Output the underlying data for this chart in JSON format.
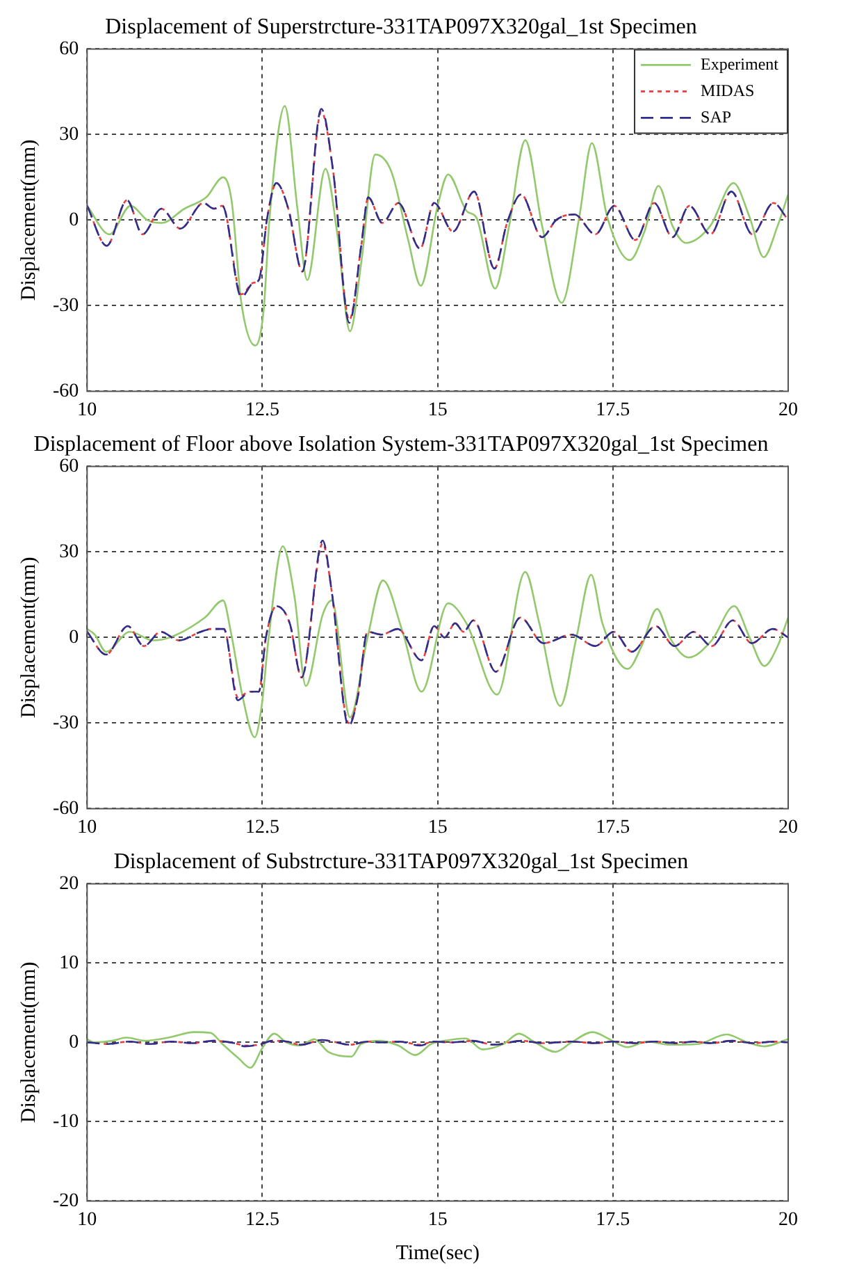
{
  "chart_data": [
    {
      "type": "line",
      "title": "Displacement of Superstrcture-331TAP097X320gal_1st Specimen",
      "ylabel": "Displacement(mm)",
      "xlim": [
        10,
        20
      ],
      "xticks": [
        10,
        12.5,
        15,
        17.5,
        20
      ],
      "ylim": [
        -60,
        60
      ],
      "yticks": [
        -60,
        -30,
        0,
        30,
        60
      ],
      "grid": true,
      "legend": "top right",
      "series": [
        {
          "name": "Experiment",
          "color": "#92c96c",
          "line_style": "solid",
          "x": [
            10,
            10.32,
            10.62,
            10.86,
            11.06,
            11.39,
            11.7,
            11.94,
            12.06,
            12.2,
            12.4,
            12.52,
            12.6,
            12.82,
            13.0,
            13.14,
            13.4,
            13.57,
            13.75,
            13.91,
            14.11,
            14.34,
            14.58,
            14.76,
            15.0,
            15.15,
            15.42,
            15.55,
            15.82,
            16.02,
            16.25,
            16.49,
            16.77,
            17.02,
            17.2,
            17.42,
            17.74,
            17.95,
            18.15,
            18.35,
            18.54,
            18.89,
            19.22,
            19.45,
            19.65,
            19.85,
            20
          ],
          "values": [
            5,
            -5,
            5,
            0,
            -1,
            4,
            8,
            15,
            7,
            -29,
            -44,
            -31,
            0,
            40,
            4,
            -21,
            18,
            -5,
            -39,
            -15,
            23,
            17,
            -7,
            -23,
            5,
            16,
            3,
            1,
            -24,
            -2,
            28,
            -2,
            -29,
            1,
            27,
            1,
            -14,
            -4,
            12,
            -2,
            -8,
            -2,
            13,
            1,
            -13,
            -2,
            9
          ]
        },
        {
          "name": "MIDAS",
          "color": "#ee3b3b",
          "line_style": "dotted",
          "x": [
            10,
            10.28,
            10.57,
            10.79,
            11.06,
            11.33,
            11.66,
            11.81,
            11.93,
            12.2,
            12.37,
            12.45,
            12.57,
            12.7,
            12.87,
            13.07,
            13.34,
            13.51,
            13.74,
            13.91,
            14.01,
            14.21,
            14.44,
            14.75,
            14.95,
            15.22,
            15.52,
            15.81,
            15.99,
            16.19,
            16.49,
            16.69,
            16.95,
            17.25,
            17.52,
            17.82,
            18.09,
            18.35,
            18.59,
            18.89,
            19.19,
            19.49,
            19.79,
            20
          ],
          "values": [
            5,
            -9,
            7,
            -5,
            4,
            -3,
            6,
            4,
            5,
            -26,
            -22,
            -21,
            1,
            13,
            4,
            -18,
            38,
            17,
            -35,
            -9,
            8,
            -1,
            6,
            -10,
            6,
            -4,
            10,
            -17,
            -1,
            9,
            -6,
            0,
            2,
            -5,
            5,
            -7,
            6,
            -6,
            5,
            -5,
            10,
            -5,
            6,
            0
          ]
        },
        {
          "name": "SAP",
          "color": "#2e2e8e",
          "line_style": "dashed",
          "x": [
            10,
            10.28,
            10.57,
            10.79,
            11.06,
            11.33,
            11.66,
            11.81,
            11.93,
            12.2,
            12.37,
            12.45,
            12.57,
            12.7,
            12.87,
            13.07,
            13.34,
            13.51,
            13.74,
            13.91,
            14.01,
            14.21,
            14.44,
            14.75,
            14.95,
            15.22,
            15.52,
            15.81,
            15.99,
            16.19,
            16.49,
            16.69,
            16.95,
            17.25,
            17.52,
            17.82,
            18.09,
            18.35,
            18.59,
            18.89,
            19.19,
            19.49,
            19.79,
            20
          ],
          "values": [
            5,
            -9,
            7,
            -5,
            4,
            -3,
            6,
            4,
            5,
            -27,
            -22,
            -21,
            1,
            13,
            4,
            -18,
            39,
            17,
            -36,
            -9,
            8,
            -1,
            6,
            -10,
            6,
            -4,
            10,
            -17,
            -1,
            9,
            -6,
            0,
            2,
            -5,
            5,
            -7,
            6,
            -6,
            5,
            -5,
            10,
            -5,
            6,
            0
          ]
        }
      ]
    },
    {
      "type": "line",
      "title": "Displacement of Floor above Isolation System-331TAP097X320gal_1st Specimen",
      "ylabel": "Displacement(mm)",
      "xlim": [
        10,
        20
      ],
      "xticks": [
        10,
        12.5,
        15,
        17.5,
        20
      ],
      "ylim": [
        -60,
        60
      ],
      "yticks": [
        -60,
        -30,
        0,
        30,
        60
      ],
      "grid": true,
      "series": [
        {
          "color": "#92c96c",
          "line_style": "solid",
          "x": [
            10,
            10.11,
            10.27,
            10.61,
            10.94,
            11.18,
            11.68,
            11.94,
            12.05,
            12.22,
            12.39,
            12.49,
            12.59,
            12.79,
            12.96,
            13.12,
            13.36,
            13.49,
            13.75,
            14.0,
            14.22,
            14.5,
            14.77,
            15.15,
            15.41,
            15.85,
            16.25,
            16.45,
            16.75,
            16.98,
            17.19,
            17.35,
            17.71,
            17.91,
            18.13,
            18.31,
            18.58,
            18.91,
            19.23,
            19.45,
            19.66,
            19.85,
            20
          ],
          "values": [
            3,
            1,
            -5,
            2,
            -1,
            0,
            7,
            13,
            2,
            -21,
            -35,
            -24,
            0,
            32,
            14,
            -17,
            8,
            13,
            -28,
            0,
            20,
            2,
            -19,
            12,
            5,
            -20,
            23,
            5,
            -24,
            0,
            22,
            5,
            -11,
            -3,
            10,
            0,
            -7,
            -1,
            11,
            0,
            -10,
            -3,
            7
          ]
        },
        {
          "color": "#ee3b3b",
          "line_style": "dotted",
          "x": [
            10,
            10.27,
            10.58,
            10.81,
            11.05,
            11.31,
            11.62,
            11.78,
            11.95,
            12.15,
            12.32,
            12.45,
            12.55,
            12.7,
            12.89,
            13.06,
            13.36,
            13.49,
            13.73,
            13.86,
            14.0,
            14.2,
            14.43,
            14.77,
            14.95,
            15.1,
            15.25,
            15.37,
            15.51,
            15.83,
            16.18,
            16.51,
            16.91,
            17.25,
            17.51,
            17.77,
            18.11,
            18.38,
            18.65,
            18.91,
            19.21,
            19.48,
            19.78,
            20
          ],
          "values": [
            2,
            -6,
            4,
            -3,
            2,
            -1,
            2,
            3,
            3,
            -21,
            -19,
            -19,
            0,
            11,
            5,
            -14,
            33,
            16,
            -30,
            -21,
            2,
            1,
            3,
            -8,
            4,
            0,
            5,
            2,
            6,
            -12,
            7,
            -2,
            1,
            -3,
            2,
            -5,
            4,
            -3,
            2,
            -3,
            6,
            -2,
            3,
            0
          ]
        },
        {
          "color": "#2e2e8e",
          "line_style": "dashed",
          "x": [
            10,
            10.27,
            10.58,
            10.81,
            11.05,
            11.31,
            11.62,
            11.78,
            11.95,
            12.15,
            12.32,
            12.45,
            12.55,
            12.7,
            12.89,
            13.06,
            13.36,
            13.49,
            13.73,
            13.86,
            14.0,
            14.2,
            14.43,
            14.77,
            14.95,
            15.1,
            15.25,
            15.37,
            15.51,
            15.83,
            16.18,
            16.51,
            16.91,
            17.25,
            17.51,
            17.77,
            18.11,
            18.38,
            18.65,
            18.91,
            19.21,
            19.48,
            19.78,
            20
          ],
          "values": [
            2,
            -6,
            4,
            -3,
            2,
            -1,
            2,
            3,
            3,
            -22,
            -19,
            -19,
            0,
            11,
            5,
            -14,
            34,
            16,
            -31,
            -21,
            2,
            1,
            3,
            -8,
            4,
            0,
            5,
            2,
            6,
            -12,
            7,
            -2,
            1,
            -3,
            2,
            -5,
            4,
            -3,
            2,
            -3,
            6,
            -2,
            3,
            0
          ]
        }
      ]
    },
    {
      "type": "line",
      "title": "Displacement of Substrcture-331TAP097X320gal_1st Specimen",
      "xlabel": "Time(sec)",
      "ylabel": "Displacement(mm)",
      "xlim": [
        10,
        20
      ],
      "xticks": [
        10,
        12.5,
        15,
        17.5,
        20
      ],
      "ylim": [
        -20,
        20
      ],
      "yticks": [
        -20,
        -10,
        0,
        10,
        20
      ],
      "grid": true,
      "series": [
        {
          "color": "#92c96c",
          "line_style": "solid",
          "x": [
            10,
            10.09,
            10.36,
            10.56,
            10.82,
            11.16,
            11.53,
            11.76,
            11.93,
            12.16,
            12.33,
            12.5,
            12.67,
            12.84,
            13.04,
            13.24,
            13.44,
            13.77,
            13.91,
            14.18,
            14.44,
            14.68,
            14.91,
            15.1,
            15.4,
            15.64,
            15.94,
            16.16,
            16.37,
            16.68,
            16.91,
            17.21,
            17.45,
            17.71,
            17.98,
            18.32,
            18.72,
            19.12,
            19.39,
            19.66,
            20
          ],
          "values": [
            0.4,
            0,
            0.2,
            0.6,
            0.2,
            0.6,
            1.3,
            1.2,
            -0.2,
            -2,
            -3.2,
            -0.7,
            1.1,
            0,
            -0.4,
            0.4,
            -1.2,
            -1.8,
            -0.2,
            0.2,
            -0.4,
            -1.6,
            -0.2,
            0.2,
            0.5,
            -0.9,
            -0.2,
            1.1,
            0.1,
            -1.2,
            0,
            1.3,
            0.4,
            -0.6,
            0.1,
            -0.3,
            -0.2,
            1,
            0.1,
            -0.5,
            0.4
          ]
        },
        {
          "color": "#ee3b3b",
          "line_style": "dotted",
          "x": [
            10,
            10.3,
            10.6,
            10.9,
            11.2,
            11.5,
            11.8,
            12.1,
            12.25,
            12.45,
            12.65,
            12.85,
            13.05,
            13.35,
            13.5,
            13.75,
            14.0,
            14.2,
            14.45,
            14.75,
            14.95,
            15.2,
            15.5,
            15.8,
            16.2,
            16.5,
            16.9,
            17.25,
            17.5,
            17.8,
            18.1,
            18.4,
            18.65,
            18.9,
            19.2,
            19.5,
            19.8,
            20
          ],
          "values": [
            0,
            -0.2,
            0.1,
            -0.2,
            0.1,
            -0.1,
            0.2,
            -0.1,
            -0.4,
            -0.3,
            0.2,
            0.1,
            -0.3,
            0.3,
            0.1,
            -0.3,
            0.1,
            0,
            0.1,
            -0.3,
            0.1,
            0,
            0.2,
            -0.3,
            0.2,
            -0.1,
            0.1,
            -0.1,
            0.1,
            -0.1,
            0.1,
            -0.1,
            0.1,
            -0.1,
            0.2,
            -0.1,
            0.1,
            0
          ]
        },
        {
          "color": "#2e2e8e",
          "line_style": "dashed",
          "x": [
            10,
            10.3,
            10.6,
            10.9,
            11.2,
            11.5,
            11.8,
            12.1,
            12.25,
            12.45,
            12.65,
            12.85,
            13.05,
            13.35,
            13.5,
            13.75,
            14.0,
            14.2,
            14.45,
            14.75,
            14.95,
            15.2,
            15.5,
            15.8,
            16.2,
            16.5,
            16.9,
            17.25,
            17.5,
            17.8,
            18.1,
            18.4,
            18.65,
            18.9,
            19.2,
            19.5,
            19.8,
            20
          ],
          "values": [
            0,
            -0.2,
            0.1,
            -0.2,
            0.1,
            -0.1,
            0.2,
            -0.1,
            -0.5,
            -0.3,
            0.2,
            0.1,
            -0.3,
            0.3,
            0.1,
            -0.3,
            0.1,
            0,
            0.1,
            -0.4,
            0.1,
            0,
            0.2,
            -0.3,
            0.2,
            -0.1,
            0.1,
            -0.1,
            0.1,
            -0.1,
            0.1,
            -0.1,
            0.1,
            -0.1,
            0.2,
            -0.1,
            0.1,
            0
          ]
        }
      ]
    }
  ]
}
